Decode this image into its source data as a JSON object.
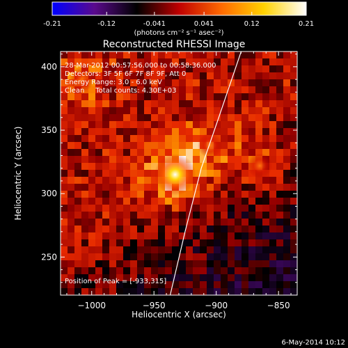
{
  "chart_data": {
    "type": "heatmap",
    "title": "Reconstructed RHESSI Image",
    "colorbar": {
      "ticks": [
        -0.21,
        -0.12,
        -0.041,
        0.041,
        0.12,
        0.21
      ],
      "tick_labels": [
        "-0.21",
        "-0.12",
        "-0.041",
        "0.041",
        "0.12",
        "0.21"
      ],
      "range": [
        -0.21,
        0.21
      ],
      "units_label": "(photons cm⁻² s⁻¹ asec⁻²)",
      "colors": [
        "#0000ff",
        "#5a0a8c",
        "#000000",
        "#c00000",
        "#ff6a00",
        "#ffd200",
        "#ffffff"
      ]
    },
    "xlabel": "Heliocentric X (arcsec)",
    "ylabel": "Heliocentric Y (arcsec)",
    "xlim": [
      -1025,
      -835
    ],
    "ylim": [
      220,
      412
    ],
    "xticks": [
      -1000,
      -950,
      -900,
      -850
    ],
    "xtick_labels": [
      "−1000",
      "−950",
      "−900",
      "−850"
    ],
    "yticks": [
      250,
      300,
      350,
      400
    ],
    "ytick_labels": [
      "250",
      "300",
      "350",
      "400"
    ],
    "annotations": [
      "28-Mar-2012 00:57:56.000 to 00:58:36.000",
      "Detectors: 3F 5F 6F 7F 8F 9F, Att 0",
      "Energy Range: 3.0 - 6.0 keV",
      "Clean     Total counts: 4.30E+03"
    ],
    "peak_label": "Position of Peak = [-933,315]",
    "peak": {
      "x": -933,
      "y": 315,
      "value": 0.21
    },
    "secondary_sources": [
      {
        "x": -905,
        "y": 338,
        "value": 0.1
      },
      {
        "x": -865,
        "y": 322,
        "value": 0.09
      },
      {
        "x": -1008,
        "y": 390,
        "value": 0.09
      }
    ],
    "limb_curve": [
      [
        -937,
        220
      ],
      [
        -925,
        270
      ],
      [
        -912,
        320
      ],
      [
        -898,
        360
      ],
      [
        -880,
        412
      ]
    ]
  },
  "footer": {
    "timestamp": "6-May-2014 10:12"
  }
}
